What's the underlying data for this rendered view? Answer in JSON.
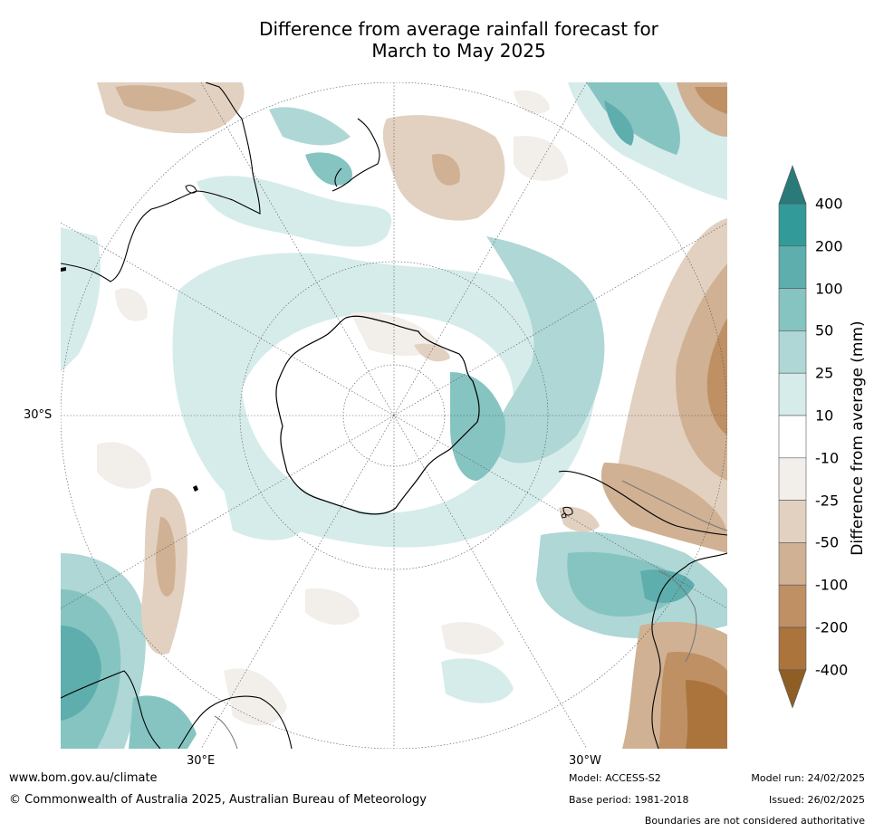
{
  "title": {
    "line1": "Difference from average rainfall forecast for",
    "line2": "March to May 2025"
  },
  "map": {
    "projection": "south-polar-stereographic",
    "labels": {
      "lon_30e": "30°E",
      "lon_30w": "30°W",
      "lat_30s": "30°S"
    }
  },
  "colorbar": {
    "title": "Difference from average (mm)",
    "levels": [
      "400",
      "200",
      "100",
      "50",
      "25",
      "10",
      "-10",
      "-25",
      "-50",
      "-100",
      "-200",
      "-400"
    ],
    "colors": {
      "gt400": "#2a7a7a",
      "c200_400": "#329a98",
      "c100_200": "#5eaeae",
      "c50_100": "#86c4c2",
      "c25_50": "#aed7d6",
      "c10_25": "#d6eceb",
      "neutral": "#ffffff",
      "cm25_m10": "#f2eee9",
      "cm50_m25": "#e2d1c1",
      "cm100_m50": "#d0b193",
      "cm200_m100": "#be9064",
      "cm400_m200": "#aa743c",
      "lt_m400": "#8f5e24"
    }
  },
  "footer": {
    "url": "www.bom.gov.au/climate",
    "copyright": "© Commonwealth of Australia 2025, Australian Bureau of Meteorology",
    "model": "Model: ACCESS-S2",
    "base_period": "Base period: 1981-2018",
    "model_run": "Model run: 24/02/2025",
    "issued": "Issued: 26/02/2025",
    "disclaimer": "Boundaries are not considered authoritative"
  }
}
